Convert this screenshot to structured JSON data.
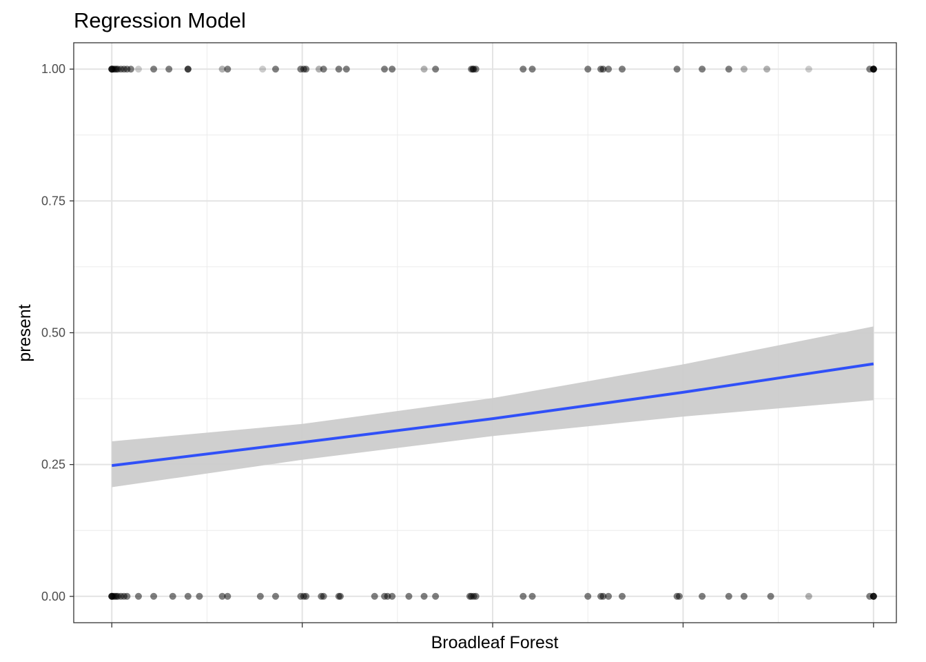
{
  "chart_data": {
    "type": "scatter",
    "title": "Regression Model",
    "xlabel": "Broadleaf Forest",
    "ylabel": "present",
    "xlim": [
      -0.05,
      1.03
    ],
    "ylim": [
      -0.05,
      1.05
    ],
    "x_ticks": [
      0,
      0.25,
      0.5,
      0.75,
      1
    ],
    "x_tick_labels": [
      "",
      "",
      "",
      "",
      ""
    ],
    "y_ticks": [
      0,
      0.25,
      0.5,
      0.75,
      1
    ],
    "y_tick_labels": [
      "0.00",
      "0.25",
      "0.50",
      "0.75",
      "1.00"
    ],
    "grid": true,
    "point_color": "#000000",
    "fit_color": "#3050F8",
    "band_color": "#cccccc",
    "points_present_1": {
      "x": [
        0,
        0,
        0,
        0.002,
        0.004,
        0.006,
        0.008,
        0.012,
        0.016,
        0.02,
        0.025,
        0.035,
        0.055,
        0.075,
        0.1,
        0.1,
        0.145,
        0.152,
        0.198,
        0.215,
        0.248,
        0.252,
        0.255,
        0.272,
        0.278,
        0.298,
        0.308,
        0.358,
        0.368,
        0.41,
        0.425,
        0.472,
        0.474,
        0.475,
        0.478,
        0.54,
        0.552,
        0.625,
        0.642,
        0.645,
        0.652,
        0.67,
        0.742,
        0.775,
        0.81,
        0.83,
        0.86,
        0.915,
        0.995,
        1,
        1,
        1,
        1
      ],
      "y": [
        1,
        1,
        1,
        1,
        1,
        1,
        1,
        1,
        1,
        1,
        1,
        1,
        1,
        1,
        1,
        1,
        1,
        1,
        1,
        1,
        1,
        1,
        1,
        1,
        1,
        1,
        1,
        1,
        1,
        1,
        1,
        1,
        1,
        1,
        1,
        1,
        1,
        1,
        1,
        1,
        1,
        1,
        1,
        1,
        1,
        1,
        1,
        1,
        1,
        1,
        1,
        1,
        1
      ],
      "alpha": [
        0.5,
        0.5,
        0.5,
        0.5,
        0.5,
        0.5,
        0.5,
        0.5,
        0.5,
        0.5,
        0.5,
        0.2,
        0.5,
        0.5,
        0.5,
        0.5,
        0.3,
        0.5,
        0.2,
        0.5,
        0.5,
        0.5,
        0.5,
        0.3,
        0.5,
        0.5,
        0.5,
        0.5,
        0.5,
        0.3,
        0.5,
        0.5,
        0.5,
        0.5,
        0.5,
        0.5,
        0.5,
        0.5,
        0.5,
        0.5,
        0.5,
        0.5,
        0.5,
        0.5,
        0.5,
        0.3,
        0.3,
        0.2,
        0.5,
        0.5,
        0.5,
        0.5,
        0.5
      ]
    },
    "points_present_0": {
      "x": [
        0,
        0,
        0,
        0.002,
        0.004,
        0.006,
        0.008,
        0.012,
        0.016,
        0.02,
        0.035,
        0.055,
        0.08,
        0.1,
        0.115,
        0.145,
        0.152,
        0.195,
        0.215,
        0.248,
        0.252,
        0.255,
        0.275,
        0.278,
        0.298,
        0.3,
        0.345,
        0.358,
        0.362,
        0.368,
        0.39,
        0.41,
        0.425,
        0.47,
        0.472,
        0.475,
        0.478,
        0.54,
        0.552,
        0.625,
        0.642,
        0.645,
        0.652,
        0.67,
        0.742,
        0.745,
        0.775,
        0.81,
        0.83,
        0.865,
        0.915,
        0.995,
        1,
        1,
        1
      ],
      "y": [
        0,
        0,
        0,
        0,
        0,
        0,
        0,
        0,
        0,
        0,
        0,
        0,
        0,
        0,
        0,
        0,
        0,
        0,
        0,
        0,
        0,
        0,
        0,
        0,
        0,
        0,
        0,
        0,
        0,
        0,
        0,
        0,
        0,
        0,
        0,
        0,
        0,
        0,
        0,
        0,
        0,
        0,
        0,
        0,
        0,
        0,
        0,
        0,
        0,
        0,
        0,
        0,
        0,
        0,
        0
      ],
      "alpha": [
        0.5,
        0.5,
        0.5,
        0.5,
        0.5,
        0.5,
        0.5,
        0.5,
        0.5,
        0.5,
        0.5,
        0.5,
        0.5,
        0.5,
        0.5,
        0.5,
        0.5,
        0.5,
        0.5,
        0.5,
        0.5,
        0.5,
        0.5,
        0.5,
        0.5,
        0.5,
        0.5,
        0.5,
        0.5,
        0.5,
        0.5,
        0.5,
        0.5,
        0.5,
        0.5,
        0.5,
        0.5,
        0.5,
        0.5,
        0.5,
        0.5,
        0.5,
        0.5,
        0.5,
        0.5,
        0.5,
        0.5,
        0.5,
        0.5,
        0.5,
        0.3,
        0.5,
        0.5,
        0.5,
        0.5
      ]
    },
    "fit_line": {
      "x": [
        0,
        0.25,
        0.5,
        0.75,
        1
      ],
      "y": [
        0.248,
        0.292,
        0.337,
        0.387,
        0.441
      ]
    },
    "confidence_band": {
      "x": [
        0,
        0.25,
        0.5,
        0.75,
        1
      ],
      "upper": [
        0.294,
        0.327,
        0.376,
        0.44,
        0.512
      ],
      "lower": [
        0.207,
        0.259,
        0.304,
        0.341,
        0.372
      ]
    }
  }
}
